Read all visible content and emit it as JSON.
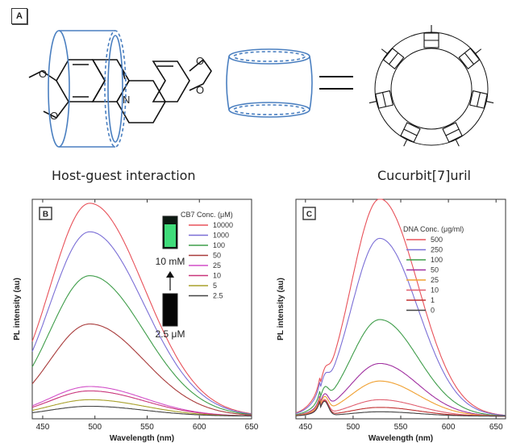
{
  "panel_a": {
    "label": "A",
    "caption_left": "Host-guest interaction",
    "caption_right": "Cucurbit[7]uril"
  },
  "chart_data": [
    {
      "type": "line",
      "panel_label": "B",
      "xlabel": "Wavelength (nm)",
      "ylabel": "PL intensity (au)",
      "xlim": [
        440,
        650
      ],
      "ylim": [
        0,
        1.0
      ],
      "xticks": [
        450,
        500,
        550,
        600,
        650
      ],
      "legend_title": "CB7 Conc. (μM)",
      "legend_position": "top-right",
      "inset": {
        "top_label": "10 mM",
        "bottom_label": "2.5 μM"
      },
      "peak_x": 495,
      "series": [
        {
          "name": "10000",
          "color": "#e8525a",
          "peak": 0.97
        },
        {
          "name": "1000",
          "color": "#7b6fd6",
          "peak": 0.84
        },
        {
          "name": "100",
          "color": "#3f9d4a",
          "peak": 0.64
        },
        {
          "name": "50",
          "color": "#a83a3a",
          "peak": 0.42
        },
        {
          "name": "25",
          "color": "#d24fc8",
          "peak": 0.135
        },
        {
          "name": "10",
          "color": "#c9357b",
          "peak": 0.115
        },
        {
          "name": "5",
          "color": "#a8a02a",
          "peak": 0.075
        },
        {
          "name": "2.5",
          "color": "#444444",
          "peak": 0.045
        }
      ]
    },
    {
      "type": "line",
      "panel_label": "C",
      "xlabel": "Wavelength (nm)",
      "ylabel": "PL intensity (au)",
      "xlim": [
        440,
        660
      ],
      "ylim": [
        0,
        1.0
      ],
      "xticks": [
        450,
        500,
        550,
        600,
        650
      ],
      "legend_title": "DNA Conc. (μg/ml)",
      "legend_position": "top-right",
      "peak_x": 528,
      "shoulder_x": 470,
      "series": [
        {
          "name": "500",
          "color": "#e8525a",
          "peak": 0.99
        },
        {
          "name": "250",
          "color": "#7b6fd6",
          "peak": 0.81
        },
        {
          "name": "100",
          "color": "#3f9d4a",
          "peak": 0.44
        },
        {
          "name": "50",
          "color": "#a030a0",
          "peak": 0.24
        },
        {
          "name": "25",
          "color": "#f0a030",
          "peak": 0.16
        },
        {
          "name": "10",
          "color": "#e06070",
          "peak": 0.075
        },
        {
          "name": "1",
          "color": "#c03030",
          "peak": 0.04
        },
        {
          "name": "0",
          "color": "#444444",
          "peak": 0.02
        }
      ]
    }
  ]
}
